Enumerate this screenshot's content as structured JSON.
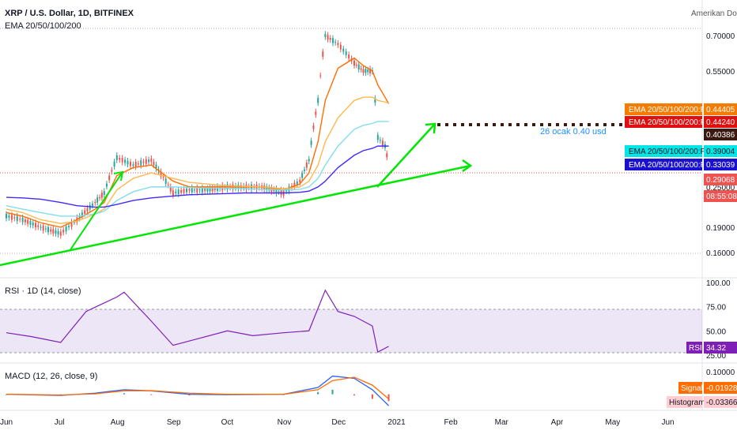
{
  "header": {
    "symbol_title": "XRP / U.S. Dollar, 1D, BITFINEX",
    "indicator_label": "EMA 20/50/100/200",
    "currency_label": "Amerikan Dola"
  },
  "annotation": {
    "text": "26 ocak 0.40 usd"
  },
  "price_badges": [
    {
      "label": "EMA 20/50/100/200:Plot",
      "value": "0.44405",
      "color": "#f57c00"
    },
    {
      "label": "EMA 20/50/100/200:Plot",
      "value": "0.44240",
      "color": "#e01010"
    },
    {
      "label": "",
      "value": "0.40386",
      "color": "#3a1a10"
    },
    {
      "label": "EMA 20/50/100/200:Plot",
      "value": "0.39004",
      "color": "#00e5e5"
    },
    {
      "label": "EMA 20/50/100/200:Plot",
      "value": "0.33039",
      "color": "#1a10d0"
    },
    {
      "label": "",
      "value": "0.29068",
      "color": "#ef5350"
    },
    {
      "label": "",
      "value": "08:55:08",
      "color": "#ef5350"
    }
  ],
  "rsi_panel": {
    "title": "RSI · 1D (14, close)",
    "badge_label": "RSI",
    "badge_value": "34.32",
    "ticks": [
      "100.00",
      "75.00",
      "50.00",
      "25.00"
    ]
  },
  "macd_panel": {
    "title": "MACD (12, 26, close, 9)",
    "signal_label": "Signal",
    "signal_value": "-0.01928",
    "histogram_label": "Histogram",
    "histogram_value": "-0.03366",
    "ticks": [
      "0.10000"
    ]
  },
  "chart_data": [
    {
      "type": "line",
      "panel": "price",
      "title": "XRP / U.S. Dollar, 1D, BITFINEX",
      "y_scale": "log",
      "ylim": [
        0.14,
        0.8
      ],
      "y_ticks": [
        "0.70000",
        "0.55000",
        "0.25000",
        "0.19000",
        "0.16000"
      ],
      "x_ticks": [
        "Jun",
        "Jul",
        "Aug",
        "Sep",
        "Oct",
        "Nov",
        "Dec",
        "2021",
        "Feb",
        "Mar",
        "Apr",
        "May",
        "Jun"
      ],
      "x": [
        "2020-06-01",
        "2020-06-10",
        "2020-06-20",
        "2020-07-01",
        "2020-07-10",
        "2020-07-20",
        "2020-07-25",
        "2020-08-01",
        "2020-08-10",
        "2020-08-20",
        "2020-09-01",
        "2020-09-10",
        "2020-09-20",
        "2020-10-01",
        "2020-10-10",
        "2020-10-20",
        "2020-11-01",
        "2020-11-10",
        "2020-11-15",
        "2020-11-20",
        "2020-11-24",
        "2020-12-01",
        "2020-12-10",
        "2020-12-15",
        "2020-12-20",
        "2020-12-23",
        "2020-12-27",
        "2020-12-29"
      ],
      "series": [
        {
          "values": [
            0.205,
            0.2,
            0.19,
            0.182,
            0.2,
            0.225,
            0.24,
            0.305,
            0.29,
            0.3,
            0.24,
            0.245,
            0.245,
            0.25,
            0.25,
            0.25,
            0.24,
            0.26,
            0.3,
            0.45,
            0.7,
            0.66,
            0.58,
            0.55,
            0.55,
            0.35,
            0.33,
            0.29
          ]
        },
        {
          "values": [
            0.21,
            0.205,
            0.196,
            0.19,
            0.2,
            0.215,
            0.225,
            0.27,
            0.285,
            0.29,
            0.26,
            0.25,
            0.25,
            0.25,
            0.25,
            0.25,
            0.245,
            0.255,
            0.275,
            0.34,
            0.45,
            0.56,
            0.6,
            0.57,
            0.55,
            0.5,
            0.46,
            0.44
          ]
        },
        {
          "values": [
            0.215,
            0.21,
            0.2,
            0.195,
            0.198,
            0.208,
            0.215,
            0.245,
            0.265,
            0.275,
            0.265,
            0.258,
            0.255,
            0.252,
            0.251,
            0.25,
            0.247,
            0.25,
            0.26,
            0.29,
            0.34,
            0.4,
            0.45,
            0.46,
            0.46,
            0.45,
            0.445,
            0.442
          ]
        },
        {
          "values": [
            0.22,
            0.215,
            0.21,
            0.205,
            0.205,
            0.208,
            0.212,
            0.228,
            0.242,
            0.25,
            0.25,
            0.249,
            0.248,
            0.248,
            0.247,
            0.246,
            0.245,
            0.246,
            0.25,
            0.265,
            0.29,
            0.33,
            0.37,
            0.38,
            0.385,
            0.39,
            0.39,
            0.39
          ]
        },
        {
          "values": [
            0.233,
            0.232,
            0.23,
            0.225,
            0.22,
            0.218,
            0.218,
            0.222,
            0.228,
            0.232,
            0.235,
            0.237,
            0.238,
            0.239,
            0.24,
            0.24,
            0.24,
            0.241,
            0.243,
            0.25,
            0.26,
            0.285,
            0.31,
            0.32,
            0.325,
            0.33,
            0.33,
            0.33
          ]
        }
      ]
    },
    {
      "type": "line",
      "panel": "rsi",
      "title": "RSI · 1D (14, close)",
      "ylim": [
        20,
        100
      ],
      "x": [
        "2020-06-01",
        "2020-06-15",
        "2020-07-01",
        "2020-07-15",
        "2020-08-01",
        "2020-08-05",
        "2020-08-20",
        "2020-09-01",
        "2020-09-15",
        "2020-10-01",
        "2020-10-15",
        "2020-11-01",
        "2020-11-15",
        "2020-11-24",
        "2020-12-01",
        "2020-12-10",
        "2020-12-20",
        "2020-12-23",
        "2020-12-29"
      ],
      "series": [
        {
          "values": [
            48,
            44,
            38,
            70,
            85,
            90,
            60,
            35,
            42,
            50,
            45,
            48,
            50,
            92,
            70,
            65,
            55,
            28,
            34
          ]
        }
      ]
    },
    {
      "type": "line",
      "panel": "macd",
      "title": "MACD (12, 26, close, 9)",
      "ylim": [
        -0.06,
        0.12
      ],
      "x": [
        "2020-06-01",
        "2020-07-01",
        "2020-07-20",
        "2020-08-05",
        "2020-08-20",
        "2020-09-10",
        "2020-10-01",
        "2020-11-01",
        "2020-11-20",
        "2020-11-28",
        "2020-12-10",
        "2020-12-20",
        "2020-12-29"
      ],
      "series": [
        {
          "values": [
            0,
            -0.005,
            0.005,
            0.02,
            0.015,
            0,
            -0.002,
            0.0,
            0.03,
            0.08,
            0.07,
            0.02,
            -0.05
          ]
        },
        {
          "values": [
            0,
            -0.003,
            0.002,
            0.015,
            0.016,
            0.005,
            0.0,
            0.0,
            0.02,
            0.06,
            0.075,
            0.04,
            -0.02
          ]
        }
      ]
    }
  ]
}
